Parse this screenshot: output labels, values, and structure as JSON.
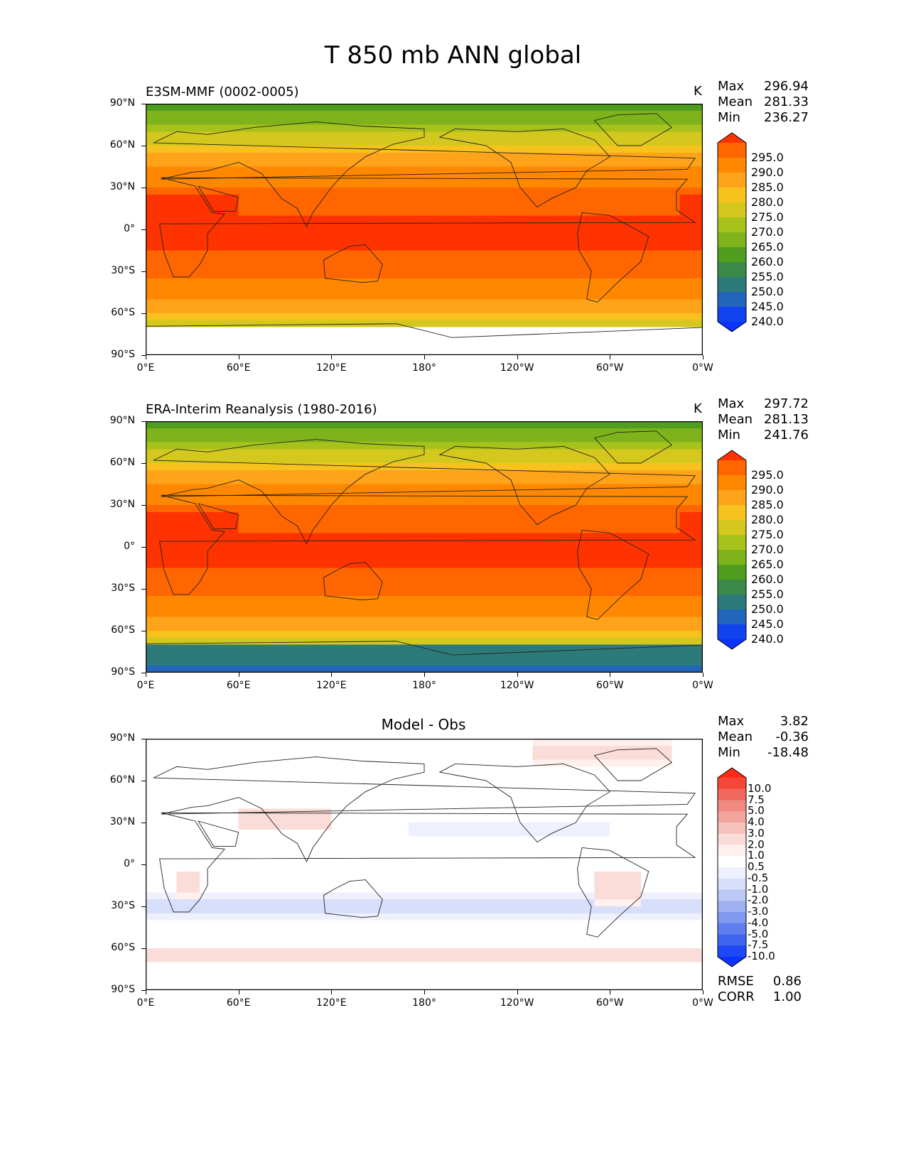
{
  "figure_title": "T 850 mb ANN global",
  "lat_labels": [
    "90°N",
    "60°N",
    "30°N",
    "0°",
    "30°S",
    "60°S",
    "90°S"
  ],
  "lon_labels": [
    "0°E",
    "60°E",
    "120°E",
    "180°",
    "120°W",
    "60°W",
    "0°W"
  ],
  "panels": [
    {
      "title": "E3SM-MMF (0002-0005)",
      "units": "K",
      "stats": {
        "max_label": "Max",
        "max": "296.94",
        "mean_label": "Mean",
        "mean": "281.33",
        "min_label": "Min",
        "min": "236.27"
      },
      "colorbar": {
        "labels": [
          "295.0",
          "290.0",
          "285.0",
          "280.0",
          "275.0",
          "270.0",
          "265.0",
          "260.0",
          "255.0",
          "250.0",
          "245.0",
          "240.0"
        ],
        "colors": [
          "#ff3300",
          "#ff6600",
          "#ff8800",
          "#ffa31a",
          "#f7c21e",
          "#d4c81e",
          "#a8c21c",
          "#7fb31c",
          "#4f9e1f",
          "#3c8a4a",
          "#2d7a7a",
          "#2266bb",
          "#1144ee",
          "#0a33ff"
        ]
      }
    },
    {
      "title": "ERA-Interim Reanalysis (1980-2016)",
      "units": "K",
      "stats": {
        "max_label": "Max",
        "max": "297.72",
        "mean_label": "Mean",
        "mean": "281.13",
        "min_label": "Min",
        "min": "241.76"
      },
      "colorbar": {
        "labels": [
          "295.0",
          "290.0",
          "285.0",
          "280.0",
          "275.0",
          "270.0",
          "265.0",
          "260.0",
          "255.0",
          "250.0",
          "245.0",
          "240.0"
        ],
        "colors": [
          "#ff3300",
          "#ff6600",
          "#ff8800",
          "#ffa31a",
          "#f7c21e",
          "#d4c81e",
          "#a8c21c",
          "#7fb31c",
          "#4f9e1f",
          "#3c8a4a",
          "#2d7a7a",
          "#2266bb",
          "#1144ee",
          "#0a33ff"
        ]
      }
    },
    {
      "title": "Model - Obs",
      "units": "",
      "stats": {
        "max_label": "Max",
        "max": "3.82",
        "mean_label": "Mean",
        "mean": "-0.36",
        "min_label": "Min",
        "min": "-18.48"
      },
      "colorbar": {
        "labels": [
          "10.0",
          "7.5",
          "5.0",
          "4.0",
          "3.0",
          "2.0",
          "1.0",
          "0.5",
          "-0.5",
          "-1.0",
          "-2.0",
          "-3.0",
          "-4.0",
          "-5.0",
          "-7.5",
          "-10.0"
        ],
        "colors": [
          "#ff2a1a",
          "#f4473a",
          "#f1695e",
          "#f08a80",
          "#f3a59d",
          "#f6c1bb",
          "#fadcd8",
          "#fff0ee",
          "#ffffff",
          "#eef1fd",
          "#d7dffa",
          "#bcc8f6",
          "#a0b1f2",
          "#8098ef",
          "#607fee",
          "#4066f0",
          "#1f48f6",
          "#0a33ff"
        ]
      },
      "metrics": {
        "rmse_label": "RMSE",
        "rmse": "0.86",
        "corr_label": "CORR",
        "corr": "1.00"
      }
    }
  ]
}
